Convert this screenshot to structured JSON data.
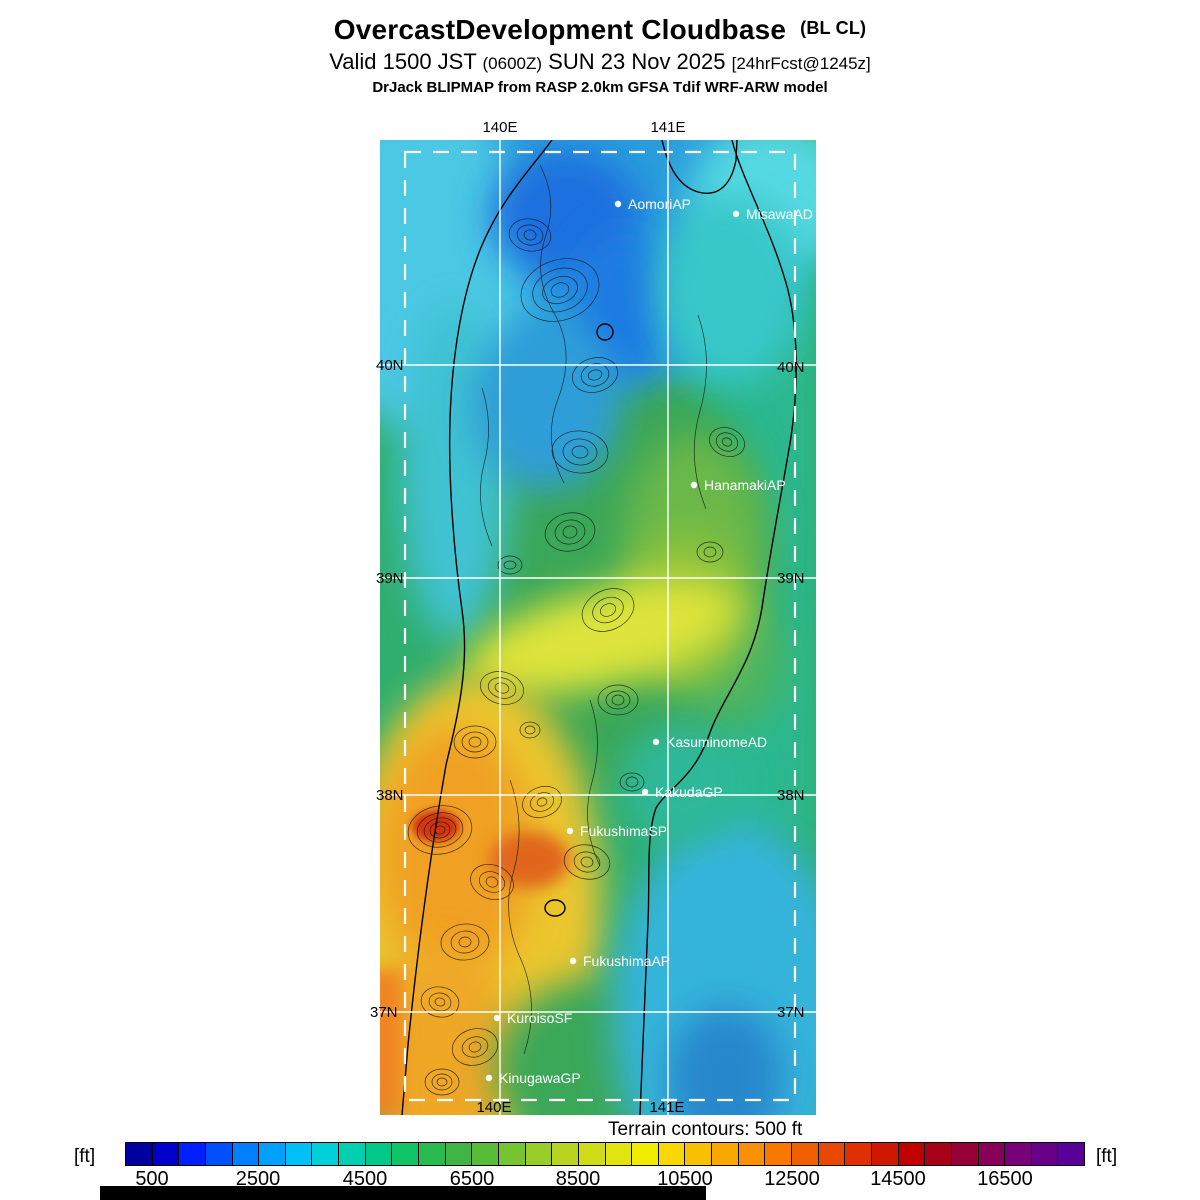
{
  "header": {
    "title": "OvercastDevelopment Cloudbase",
    "title_suffix": "(BL CL)",
    "valid_prefix": "Valid 1500 JST",
    "valid_zulu": "(0600Z)",
    "valid_date": "SUN 23 Nov 2025",
    "fcst_tag": "[24hrFcst@1245z]",
    "model_line": "DrJack BLIPMAP from RASP 2.0km GFSA Tdif WRF-ARW model"
  },
  "map": {
    "lon_labels_top": [
      "140E",
      "141E"
    ],
    "lon_labels_bottom": [
      "140E",
      "141E"
    ],
    "lat_labels_left": [
      "40N",
      "39N",
      "38N",
      "37N"
    ],
    "lat_labels_right": [
      "40N",
      "39N",
      "38N",
      "37N"
    ],
    "stations": [
      {
        "name": "AomoriAP"
      },
      {
        "name": "MisawaAD"
      },
      {
        "name": "HanamakiAP"
      },
      {
        "name": "KasuminomeAD"
      },
      {
        "name": "KakudaGP"
      },
      {
        "name": "FukushimaSP"
      },
      {
        "name": "FukushimaAP"
      },
      {
        "name": "KuroisoSF"
      },
      {
        "name": "KinugawaGP"
      }
    ]
  },
  "footer": {
    "terrain_note": "Terrain contours: 500 ft"
  },
  "colorbar": {
    "unit_left": "[ft]",
    "unit_right": "[ft]",
    "ticks": [
      "500",
      "2500",
      "4500",
      "6500",
      "8500",
      "10500",
      "12500",
      "14500",
      "16500"
    ],
    "colors": [
      "#0000a0",
      "#0000cd",
      "#0020ff",
      "#0050ff",
      "#0080ff",
      "#00a0ff",
      "#00c0f8",
      "#00d0d8",
      "#00d0b0",
      "#00c888",
      "#10c468",
      "#28bc50",
      "#40b444",
      "#58bc38",
      "#78c430",
      "#98cc28",
      "#b8d420",
      "#d0dc18",
      "#e0e410",
      "#f0ec00",
      "#f8d800",
      "#f8c000",
      "#f8a800",
      "#f89000",
      "#f87800",
      "#f06000",
      "#e84800",
      "#e03000",
      "#d01800",
      "#c00000",
      "#a80018",
      "#980038",
      "#880058",
      "#780078",
      "#680088",
      "#580098"
    ]
  },
  "chart_data": {
    "type": "heatmap",
    "title": "OvercastDevelopment Cloudbase (BL CL)",
    "valid": "Valid 1500 JST (0600Z) SUN 23 Nov 2025 [24hrFcst@1245z]",
    "model": "DrJack BLIPMAP from RASP 2.0km GFSA Tdif WRF-ARW model",
    "units": "ft",
    "scale_min": 0,
    "scale_max": 18000,
    "scale_step_ft": 500,
    "scale_tick_labels": [
      500,
      2500,
      4500,
      6500,
      8500,
      10500,
      12500,
      14500,
      16500
    ],
    "terrain_contour_interval_ft": 500,
    "lon_gridlines": [
      "140E",
      "141E"
    ],
    "lat_gridlines": [
      "40N",
      "39N",
      "38N",
      "37N"
    ],
    "region_summary": "Low cloudbase (blue, ~1000-4000 ft) over northern Tohoku/Aomori; mid green values (~5000-7000 ft) over central Tohoku and Pacific; high cloudbase band (yellow-orange-red, ~9000-13000 ft) over southwestern mountains near Fukushima/Kuroiso"
  }
}
